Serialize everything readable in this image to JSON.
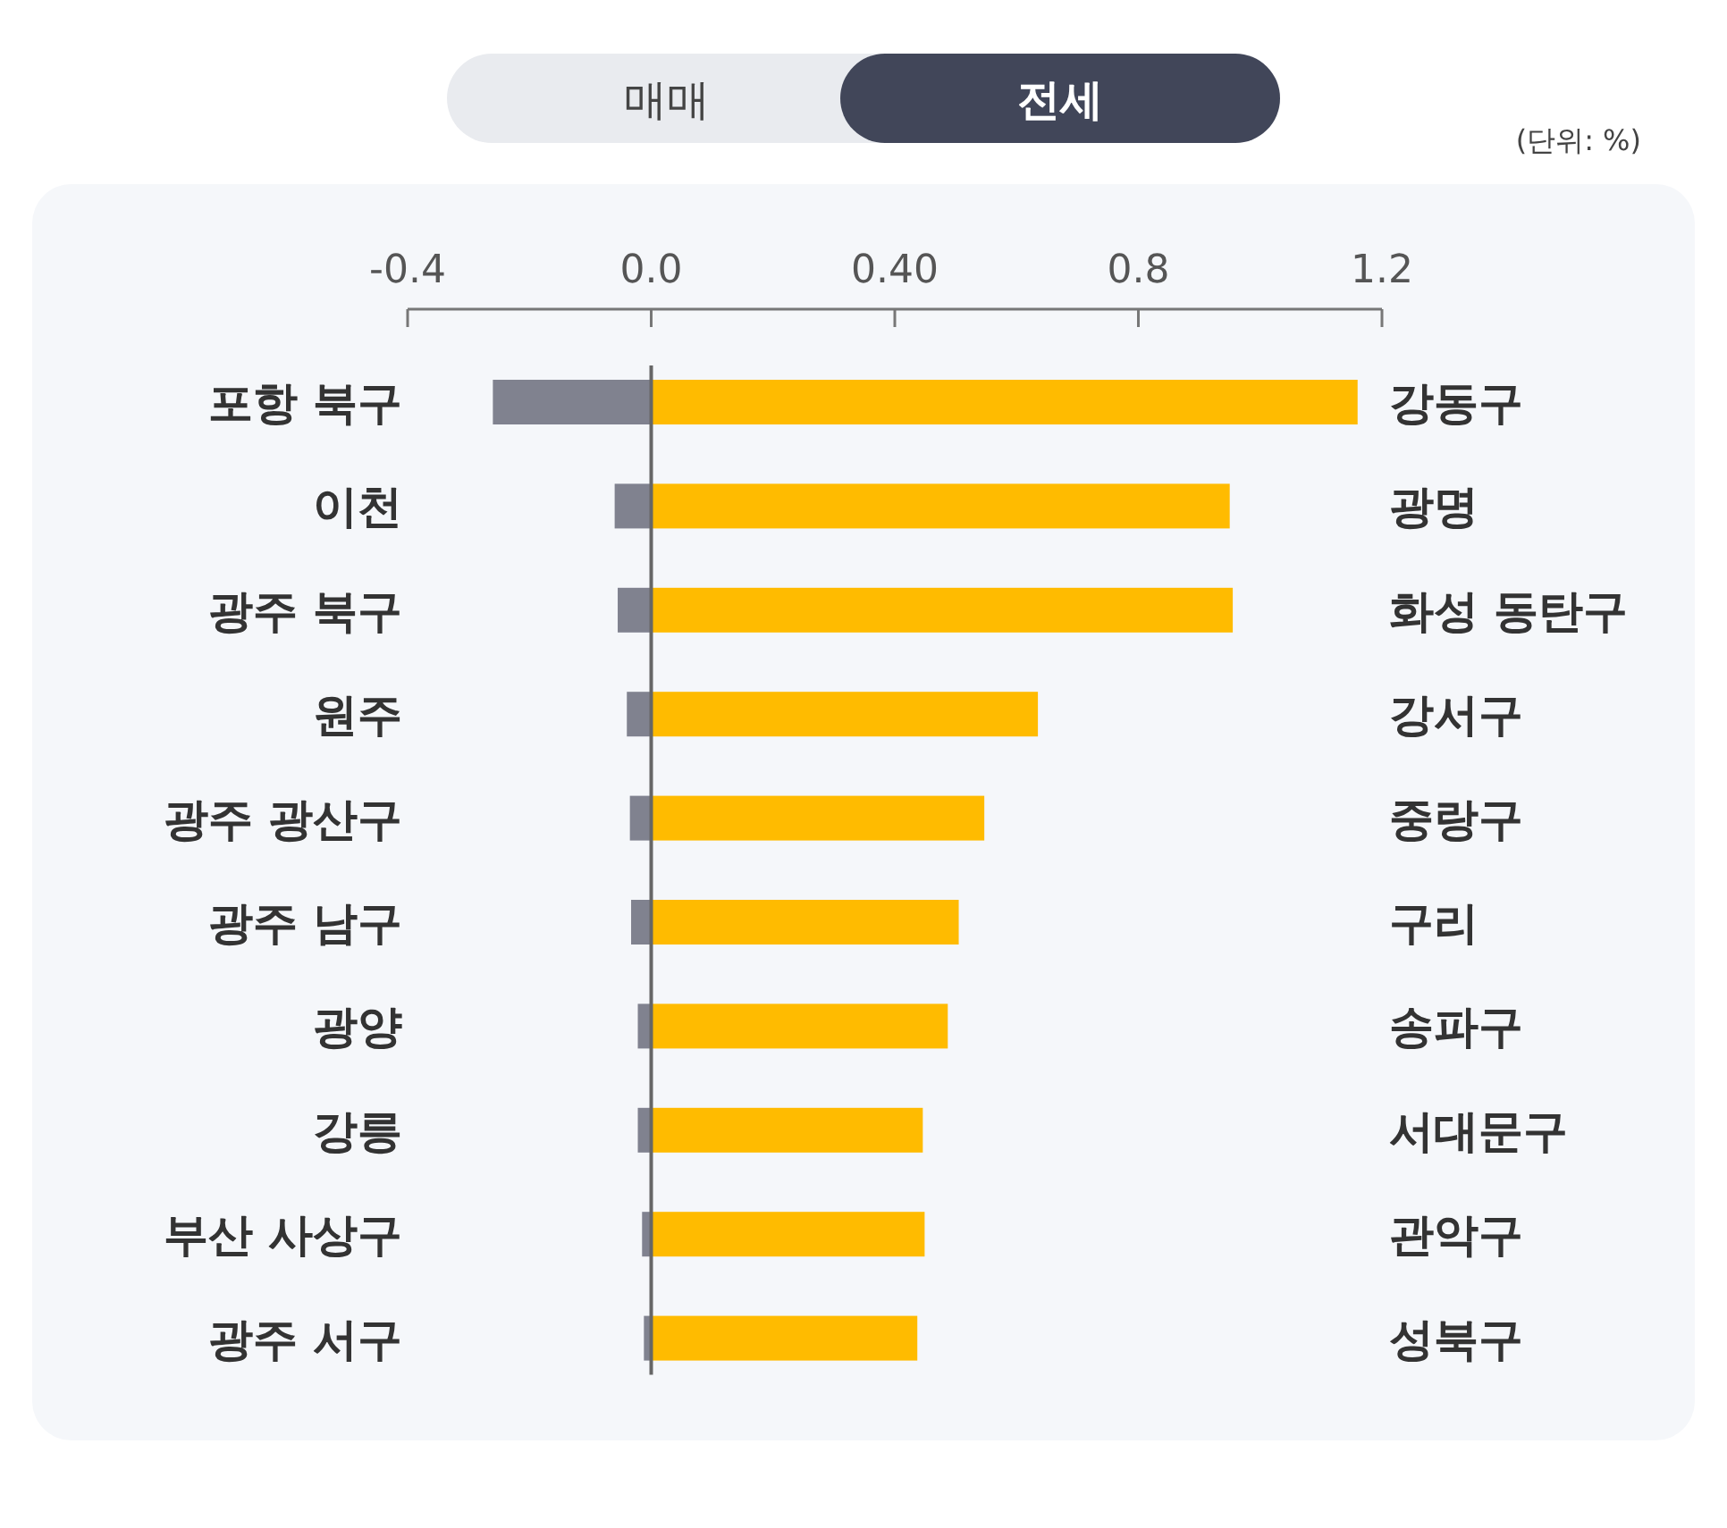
{
  "chart_data": {
    "type": "bar",
    "orientation": "horizontal",
    "categories": [
      "포항 북구",
      "이천",
      "광주 북구",
      "원주",
      "광주 광산구",
      "광주 남구",
      "광양",
      "강릉",
      "부산 사상구",
      "광주 서구"
    ],
    "y2_categories": [
      "강동구",
      "광명",
      "화성 동탄구",
      "강서구",
      "중랑구",
      "구리",
      "송파구",
      "서대문구",
      "관악구",
      "성북구"
    ],
    "series": [
      {
        "color": "#80828f",
        "values": [
          -0.26,
          -0.06,
          -0.055,
          -0.04,
          -0.035,
          -0.033,
          -0.022,
          -0.022,
          -0.015,
          -0.012
        ]
      },
      {
        "color": "#ffbb00",
        "values": [
          1.16,
          0.95,
          0.955,
          0.635,
          0.547,
          0.505,
          0.487,
          0.446,
          0.449,
          0.437
        ]
      }
    ],
    "xlim": [
      -0.4,
      1.2
    ],
    "xticks": [
      -0.4,
      {
        "value": 0,
        "label": "0.0"
      },
      {
        "value": 0.4,
        "label": "0.40"
      },
      0.8,
      1.2
    ],
    "stacked": true,
    "annotations": [
      "매매",
      "전세",
      "(단위: %)"
    ]
  }
}
